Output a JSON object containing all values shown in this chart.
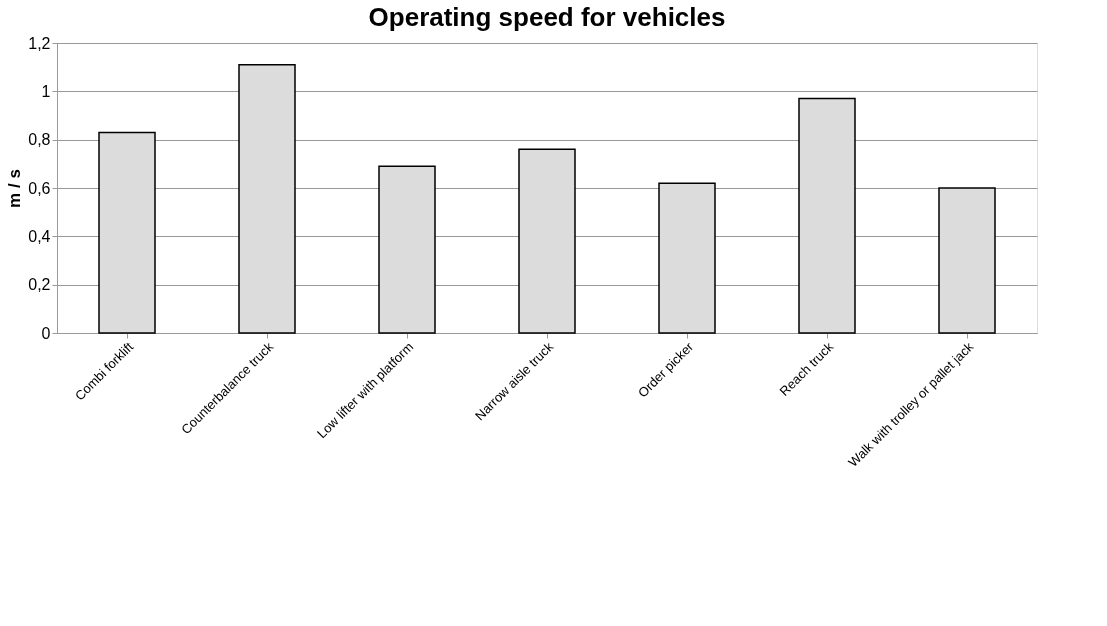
{
  "chart_data": {
    "type": "bar",
    "title": "Operating speed for vehicles",
    "ylabel": "m / s",
    "categories": [
      "Combi forklift",
      "Counterbalance truck",
      "Low lifter with platform",
      "Narrow aisle truck",
      "Order picker",
      "Reach truck",
      "Walk with trolley or pallet jack"
    ],
    "values": [
      0.83,
      1.11,
      0.69,
      0.76,
      0.62,
      0.97,
      0.6
    ],
    "color": "#dcdcdc",
    "ylim": [
      0,
      1.2
    ],
    "yticks": [
      0,
      {
        "value": 0.2,
        "label": "0,2"
      },
      {
        "value": 0.4,
        "label": "0,4"
      },
      {
        "value": 0.6,
        "label": "0,6"
      },
      {
        "value": 0.8,
        "label": "0,8"
      },
      1,
      {
        "value": 1.2,
        "label": "1,2"
      }
    ],
    "grid": "y"
  }
}
